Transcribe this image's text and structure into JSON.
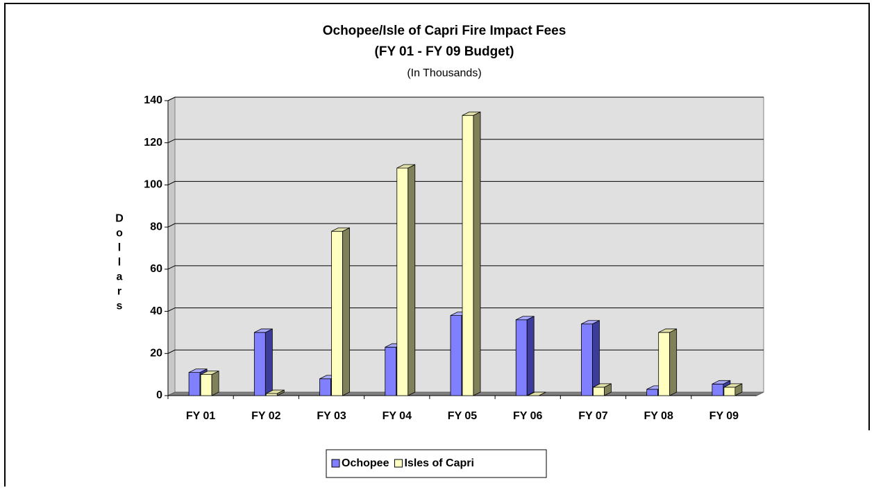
{
  "chart_data": {
    "type": "bar3d",
    "title": "Ochopee/Isle of Capri Fire Impact Fees",
    "subtitle": "(FY 01 - FY 09 Budget)",
    "note": "(In Thousands)",
    "y_label": "Dollars",
    "categories": [
      "FY 01",
      "FY 02",
      "FY 03",
      "FY 04",
      "FY 05",
      "FY 06",
      "FY 07",
      "FY 08",
      "FY 09"
    ],
    "series": [
      {
        "name": "Ochopee",
        "color": "#8080ff",
        "side": "#3c3c9a",
        "top": "#a8a8ff",
        "values": [
          11,
          30,
          8,
          23,
          38,
          36,
          34,
          3,
          5.5
        ]
      },
      {
        "name": "Isles of Capri",
        "color": "#ffffc0",
        "side": "#80805a",
        "top": "#e0e0a8",
        "values": [
          10,
          1,
          78,
          108,
          133,
          0,
          4,
          30,
          4
        ]
      }
    ],
    "ylim": [
      0,
      140
    ],
    "yticks": [
      0,
      20,
      40,
      60,
      80,
      100,
      120,
      140
    ],
    "grid": true,
    "legend": "bottom"
  }
}
